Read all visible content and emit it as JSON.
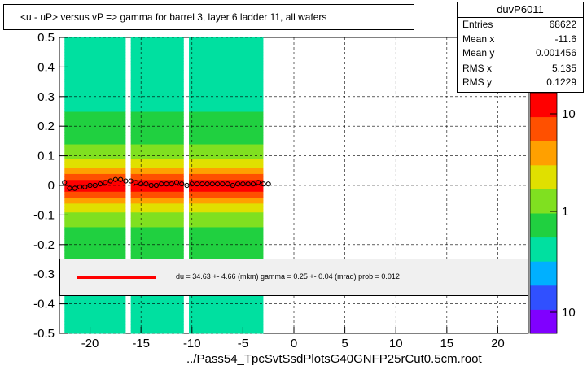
{
  "title": "<u - uP>       versus   vP =>  gamma for barrel 3, layer 6 ladder 11, all wafers",
  "stats": {
    "name": "duvP6011",
    "entries_label": "Entries",
    "entries": "68622",
    "meanx_label": "Mean x",
    "meanx": "-11.6",
    "meany_label": "Mean y",
    "meany": "0.001456",
    "rmsx_label": "RMS x",
    "rmsx": "5.135",
    "rmsy_label": "RMS y",
    "rmsy": "0.1229"
  },
  "fit_text": "du =    34.63 +-  4.66 (mkm) gamma =    0.25 +-  0.04 (mrad) prob = 0.012",
  "xlabel": "../Pass54_TpcSvtSsdPlotsG40GNFP25rCut0.5cm.root",
  "colors": {
    "fit_line": "#ff0000",
    "profile_marker": "#000000"
  },
  "chart_data": {
    "type": "heatmap",
    "title": "<u - uP>       versus   vP =>  gamma for barrel 3, layer 6 ladder 11, all wafers",
    "xlabel": "../Pass54_TpcSvtSsdPlotsG40GNFP25rCut0.5cm.root",
    "ylabel": "",
    "xlim": [
      -23,
      23
    ],
    "ylim": [
      -0.5,
      0.5
    ],
    "x_ticks": [
      -20,
      -15,
      -10,
      -5,
      0,
      5,
      10,
      15,
      20
    ],
    "y_ticks": [
      -0.5,
      -0.4,
      -0.3,
      -0.2,
      -0.1,
      0,
      0.1,
      0.2,
      0.3,
      0.4,
      0.5
    ],
    "colorbar": {
      "scale": "log",
      "tick_labels": [
        "10",
        "1",
        "10"
      ],
      "colors": [
        "#8000ff",
        "#3050ff",
        "#00b0ff",
        "#00e0a0",
        "#20d040",
        "#80e020",
        "#e0e000",
        "#ffa000",
        "#ff5000",
        "#ff0000"
      ]
    },
    "grid": true,
    "data_bands": [
      {
        "x_from": -22.5,
        "x_to": -16.5
      },
      {
        "x_from": -16.0,
        "x_to": -10.8
      },
      {
        "x_from": -10.3,
        "x_to": -3.0
      }
    ],
    "profile": {
      "x": [
        -22.5,
        -22,
        -21.5,
        -21,
        -20.5,
        -20,
        -19.5,
        -19,
        -18.5,
        -18,
        -17.5,
        -17,
        -16.5,
        -16,
        -15.5,
        -15,
        -14.5,
        -14,
        -13.5,
        -13,
        -12.5,
        -12,
        -11.5,
        -11,
        -10.5,
        -10,
        -9.5,
        -9,
        -8.5,
        -8,
        -7.5,
        -7,
        -6.5,
        -6,
        -5.5,
        -5,
        -4.5,
        -4,
        -3.5,
        -3,
        -2.5
      ],
      "y": [
        0.01,
        -0.01,
        -0.01,
        -0.005,
        -0.005,
        0.0,
        0.0,
        0.005,
        0.01,
        0.015,
        0.02,
        0.02,
        0.015,
        0.015,
        0.01,
        0.005,
        0.005,
        0.0,
        0.0,
        0.005,
        0.005,
        0.005,
        0.01,
        0.005,
        0.0,
        0.005,
        0.005,
        0.005,
        0.005,
        0.005,
        0.005,
        0.005,
        0.005,
        0.0,
        0.005,
        0.005,
        0.005,
        0.005,
        0.01,
        0.005,
        0.005
      ]
    },
    "fit": {
      "du_mkm": 34.63,
      "du_err": 4.66,
      "gamma_mrad": 0.25,
      "gamma_err": 0.04,
      "prob": 0.012
    }
  }
}
